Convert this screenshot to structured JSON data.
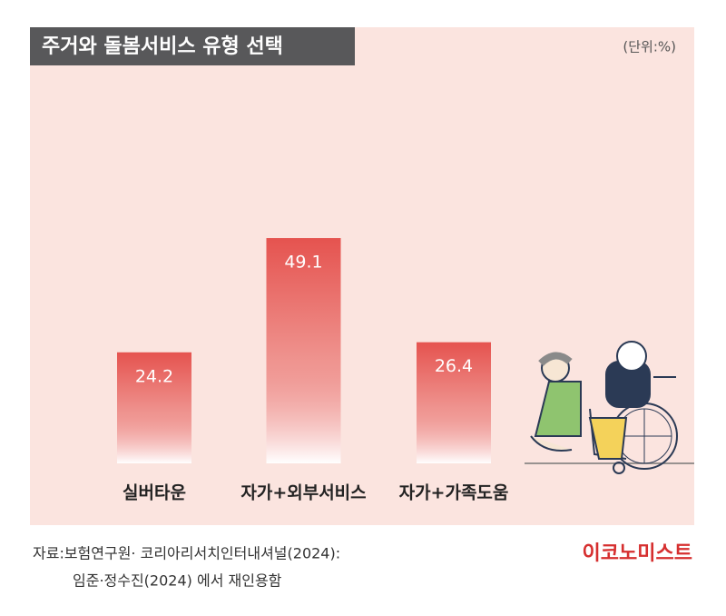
{
  "chart_data": {
    "type": "bar",
    "title": "주거와 돌봄서비스 유형 선택",
    "unit": "(단위:%)",
    "categories": [
      "실버타운",
      "자가+외부서비스",
      "자가+가족도움"
    ],
    "values": [
      24.2,
      49.1,
      26.4
    ],
    "color": "#e5534f",
    "source": [
      "자료:보험연구원· 코리아리서치인터내셔널(2024):",
      "임준·정수진(2024) 에서 재인용함"
    ],
    "brand": "이코노미스트"
  }
}
